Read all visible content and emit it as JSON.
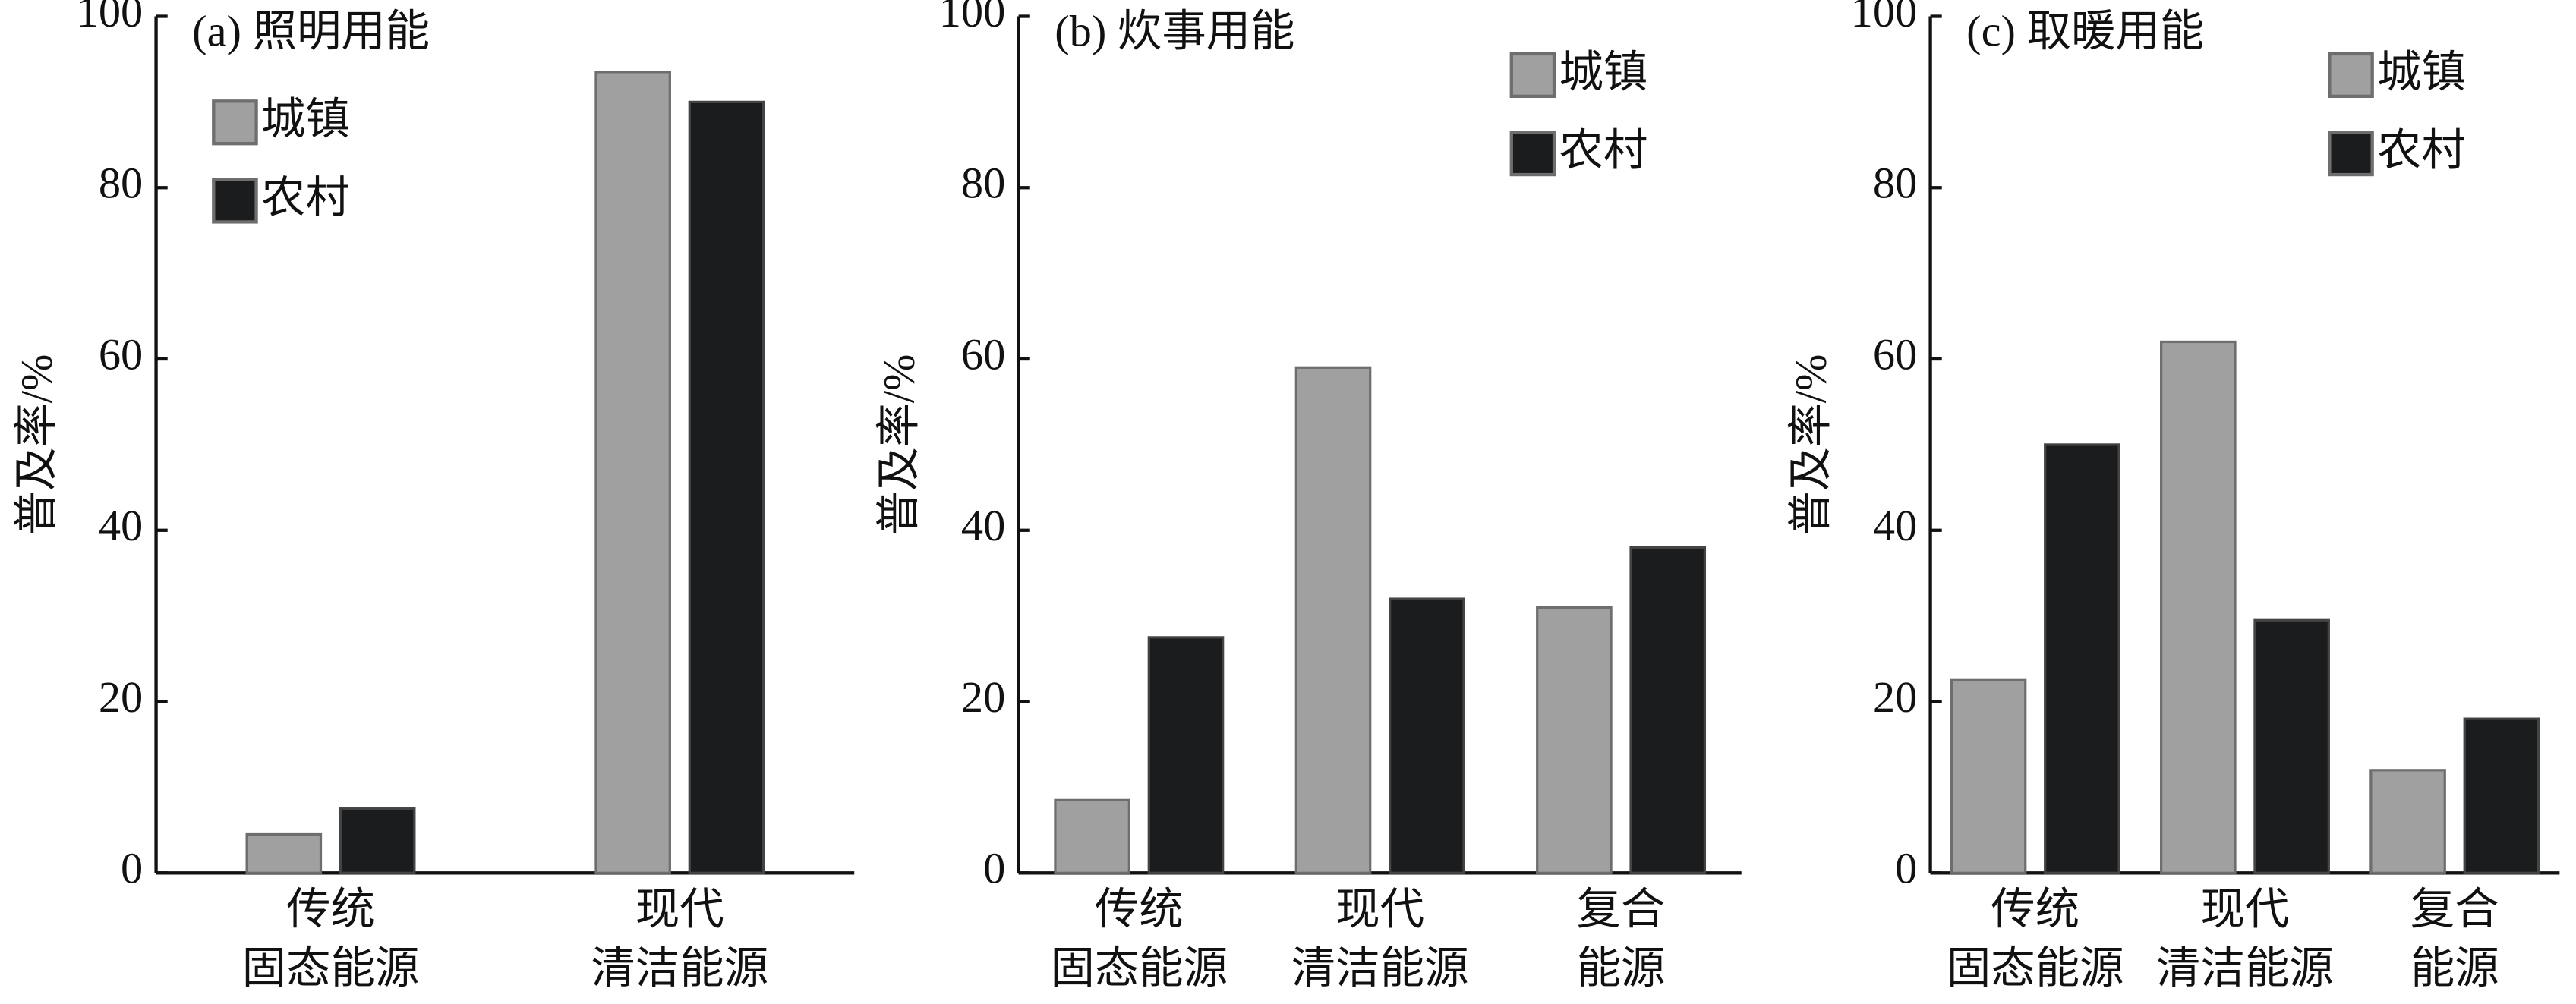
{
  "chart_data": [
    {
      "type": "bar",
      "title": "(a) 照明用能",
      "ylabel": "普及率/%",
      "categories": [
        [
          "传统",
          "固态能源"
        ],
        [
          "现代",
          "清洁能源"
        ]
      ],
      "series": [
        {
          "name": "城镇",
          "color": "#a0a0a0",
          "values": [
            4.5,
            93.5
          ]
        },
        {
          "name": "农村",
          "color": "#1a1c1d",
          "values": [
            7.5,
            90
          ]
        }
      ],
      "ylim": [
        0,
        100
      ],
      "yticks": [
        0,
        20,
        40,
        60,
        80,
        100
      ],
      "legend": "upper left"
    },
    {
      "type": "bar",
      "title": "(b) 炊事用能",
      "ylabel": "普及率/%",
      "categories": [
        [
          "传统",
          "固态能源"
        ],
        [
          "现代",
          "清洁能源"
        ],
        [
          "复合",
          "能源"
        ]
      ],
      "series": [
        {
          "name": "城镇",
          "color": "#a0a0a0",
          "values": [
            8.5,
            59,
            31
          ]
        },
        {
          "name": "农村",
          "color": "#1a1c1d",
          "values": [
            27.5,
            32,
            38
          ]
        }
      ],
      "ylim": [
        0,
        100
      ],
      "yticks": [
        0,
        20,
        40,
        60,
        80,
        100
      ],
      "legend": "upper right"
    },
    {
      "type": "bar",
      "title": "(c) 取暖用能",
      "ylabel": "普及率/%",
      "categories": [
        [
          "传统",
          "固态能源"
        ],
        [
          "现代",
          "清洁能源"
        ],
        [
          "复合",
          "能源"
        ]
      ],
      "series": [
        {
          "name": "城镇",
          "color": "#a0a0a0",
          "values": [
            22.5,
            62,
            12
          ]
        },
        {
          "name": "农村",
          "color": "#1a1c1d",
          "values": [
            50,
            29.5,
            18
          ]
        }
      ],
      "ylim": [
        0,
        100
      ],
      "yticks": [
        0,
        20,
        40,
        60,
        80,
        100
      ],
      "legend": "upper right"
    }
  ]
}
